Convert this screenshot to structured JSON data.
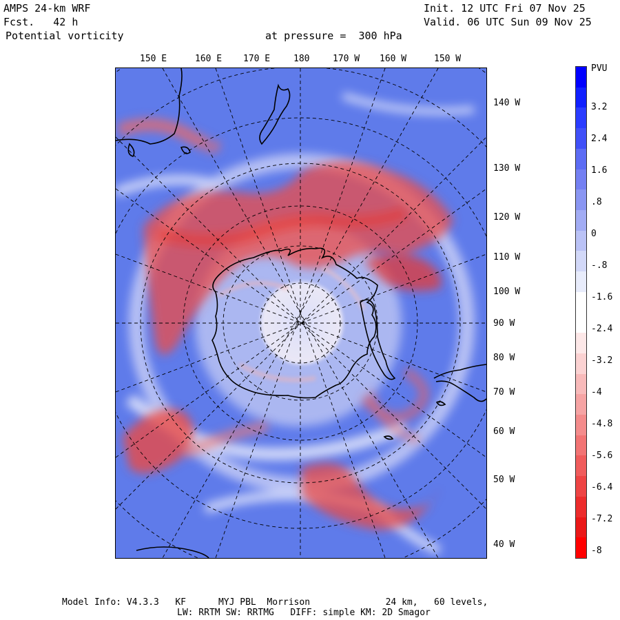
{
  "header": {
    "model_name": "AMPS 24-km WRF",
    "forecast": "Fcst.   42 h",
    "field": "Potential vorticity",
    "level": "at pressure =  300 hPa",
    "init": "Init. 12 UTC Fri 07 Nov 25",
    "valid": "Valid. 06 UTC Sun 09 Nov 25"
  },
  "map": {
    "top_labels": [
      "150 E",
      "160 E",
      "170 E",
      "180",
      "170 W",
      "160 W",
      "150 W"
    ],
    "right_labels": [
      "140 W",
      "130 W",
      "120 W",
      "110 W",
      "100 W",
      "90 W",
      "80 W",
      "70 W",
      "60 W",
      "50 W",
      "40 W"
    ],
    "colors": {
      "background": "#5f7bea",
      "positive_pv": "#e8403c",
      "neutral": "#f2f0ff",
      "coast": "#000000",
      "grid": "#000000"
    }
  },
  "colorbar": {
    "unit": "PVU",
    "labels": [
      "3.2",
      "2.4",
      "1.6",
      ".8",
      "0",
      "-.8",
      "-1.6",
      "-2.4",
      "-3.2",
      "-4",
      "-4.8",
      "-5.6",
      "-6.4",
      "-7.2",
      "-8"
    ],
    "colors": [
      "#0000ff",
      "#1020ff",
      "#2a3cff",
      "#4050f8",
      "#5c6cf4",
      "#7480f2",
      "#8a96f2",
      "#a2acf4",
      "#bac2f6",
      "#d2d8f8",
      "#e8ecfb",
      "#ffffff",
      "#ffffff",
      "#fde8e8",
      "#fbd2d2",
      "#f8baba",
      "#f6a4a4",
      "#f48c8c",
      "#f27474",
      "#f05c5c",
      "#ee4444",
      "#ec2c2c",
      "#ea1818",
      "#ff0000"
    ]
  },
  "footer": {
    "line1": "Model Info: V4.3.3   KF      MYJ PBL  Morrison              24 km,   60 levels,",
    "line2": "LW: RRTM SW: RRTMG   DIFF: simple KM: 2D Smagor"
  }
}
